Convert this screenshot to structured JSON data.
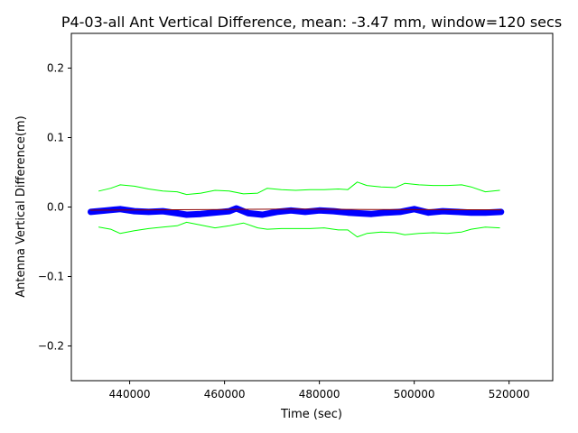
{
  "chart_data": {
    "type": "line",
    "title": "P4-03-all Ant Vertical Difference, mean: -3.47 mm, window=120 secs",
    "xlabel": "Time (sec)",
    "ylabel": "Antenna Vertical Difference(m)",
    "xlim": [
      427700,
      529200
    ],
    "ylim": [
      -0.25,
      0.25
    ],
    "xticks": [
      440000,
      460000,
      480000,
      500000,
      520000
    ],
    "xtick_labels": [
      "440000",
      "460000",
      "480000",
      "500000",
      "520000"
    ],
    "yticks": [
      0.2,
      0.1,
      0.0,
      -0.1,
      -0.2
    ],
    "ytick_labels": [
      "0.2",
      "0.1",
      "0.0",
      "−0.1",
      "−0.2"
    ],
    "grid": false,
    "series": [
      {
        "color": "#0000ff",
        "style": "noisy marker line",
        "x": [
          431800,
          435000,
          438000,
          441000,
          444000,
          447000,
          450000,
          452000,
          455000,
          458000,
          461000,
          462500,
          465000,
          468000,
          471000,
          474000,
          477000,
          480000,
          483000,
          486000,
          488000,
          491000,
          494000,
          497000,
          500000,
          503000,
          506000,
          509000,
          512000,
          515000,
          518300
        ],
        "y": [
          -0.007,
          -0.005,
          -0.003,
          -0.006,
          -0.007,
          -0.006,
          -0.009,
          -0.011,
          -0.01,
          -0.008,
          -0.006,
          -0.002,
          -0.009,
          -0.011,
          -0.007,
          -0.005,
          -0.007,
          -0.005,
          -0.006,
          -0.008,
          -0.009,
          -0.01,
          -0.008,
          -0.007,
          -0.003,
          -0.008,
          -0.006,
          -0.007,
          -0.008,
          -0.008,
          -0.007
        ]
      },
      {
        "color": "#8b0000",
        "style": "running mean",
        "x": [
          431800,
          445000,
          460000,
          475000,
          490000,
          505000,
          518300
        ],
        "y": [
          -0.0045,
          -0.004,
          -0.0035,
          -0.003,
          -0.0035,
          -0.0038,
          -0.004
        ]
      },
      {
        "color": "#00ff00",
        "style": "upper envelope",
        "x": [
          433500,
          436000,
          438000,
          441000,
          444000,
          447000,
          450000,
          452000,
          455000,
          458000,
          461000,
          464000,
          467000,
          469000,
          472000,
          475000,
          478000,
          481000,
          484000,
          486000,
          488000,
          490000,
          493000,
          496000,
          498000,
          501000,
          504000,
          507000,
          510000,
          512000,
          515000,
          518000
        ],
        "y": [
          0.023,
          0.027,
          0.032,
          0.03,
          0.026,
          0.023,
          0.022,
          0.018,
          0.02,
          0.024,
          0.023,
          0.019,
          0.02,
          0.027,
          0.025,
          0.024,
          0.025,
          0.025,
          0.026,
          0.025,
          0.036,
          0.031,
          0.029,
          0.028,
          0.034,
          0.032,
          0.031,
          0.031,
          0.032,
          0.029,
          0.022,
          0.024
        ]
      },
      {
        "color": "#00ff00",
        "style": "lower envelope",
        "x": [
          433500,
          436000,
          438000,
          441000,
          444000,
          447000,
          450000,
          452000,
          455000,
          458000,
          461000,
          464000,
          467000,
          469000,
          472000,
          475000,
          478000,
          481000,
          484000,
          486000,
          488000,
          490000,
          493000,
          496000,
          498000,
          501000,
          504000,
          507000,
          510000,
          512000,
          515000,
          518000
        ],
        "y": [
          -0.029,
          -0.032,
          -0.038,
          -0.034,
          -0.031,
          -0.029,
          -0.027,
          -0.022,
          -0.026,
          -0.03,
          -0.027,
          -0.023,
          -0.03,
          -0.032,
          -0.031,
          -0.031,
          -0.031,
          -0.03,
          -0.033,
          -0.033,
          -0.043,
          -0.038,
          -0.036,
          -0.037,
          -0.04,
          -0.038,
          -0.037,
          -0.038,
          -0.036,
          -0.032,
          -0.029,
          -0.03
        ]
      }
    ]
  }
}
